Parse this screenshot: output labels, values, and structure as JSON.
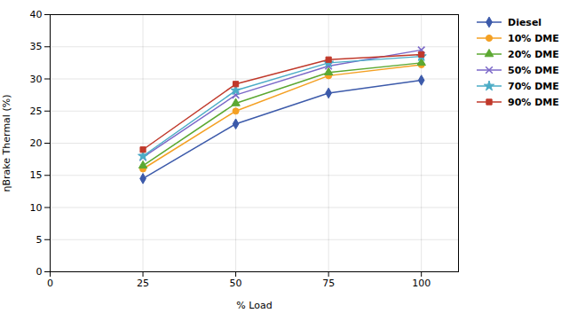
{
  "chart_data": {
    "type": "line",
    "x": [
      25,
      50,
      75,
      100
    ],
    "series": [
      {
        "name": "Diesel",
        "color": "#3c5aaa",
        "marker": "diamond",
        "values": [
          14.5,
          23.0,
          27.8,
          29.8
        ]
      },
      {
        "name": "10% DME",
        "color": "#f4a023",
        "marker": "circle",
        "values": [
          16.0,
          25.0,
          30.5,
          32.2
        ]
      },
      {
        "name": "20% DME",
        "color": "#5ca832",
        "marker": "triangle",
        "values": [
          16.5,
          26.2,
          31.0,
          32.5
        ]
      },
      {
        "name": "50% DME",
        "color": "#7b68c8",
        "marker": "times",
        "values": [
          17.8,
          27.5,
          32.0,
          34.5
        ]
      },
      {
        "name": "70% DME",
        "color": "#4bacc6",
        "marker": "star",
        "values": [
          18.0,
          28.2,
          32.5,
          33.5
        ]
      },
      {
        "name": "90% DME",
        "color": "#c0392b",
        "marker": "square",
        "values": [
          19.0,
          29.2,
          33.0,
          33.8
        ]
      }
    ],
    "xlabel": "% Load",
    "ylabel": "ηBrake Thermal (%)",
    "xlim": [
      0,
      110
    ],
    "ylim": [
      0,
      40
    ],
    "xticks": [
      0,
      25,
      50,
      75,
      100
    ],
    "yticks": [
      0,
      5,
      10,
      15,
      20,
      25,
      30,
      35,
      40
    ],
    "grid": true,
    "legend": "right"
  }
}
